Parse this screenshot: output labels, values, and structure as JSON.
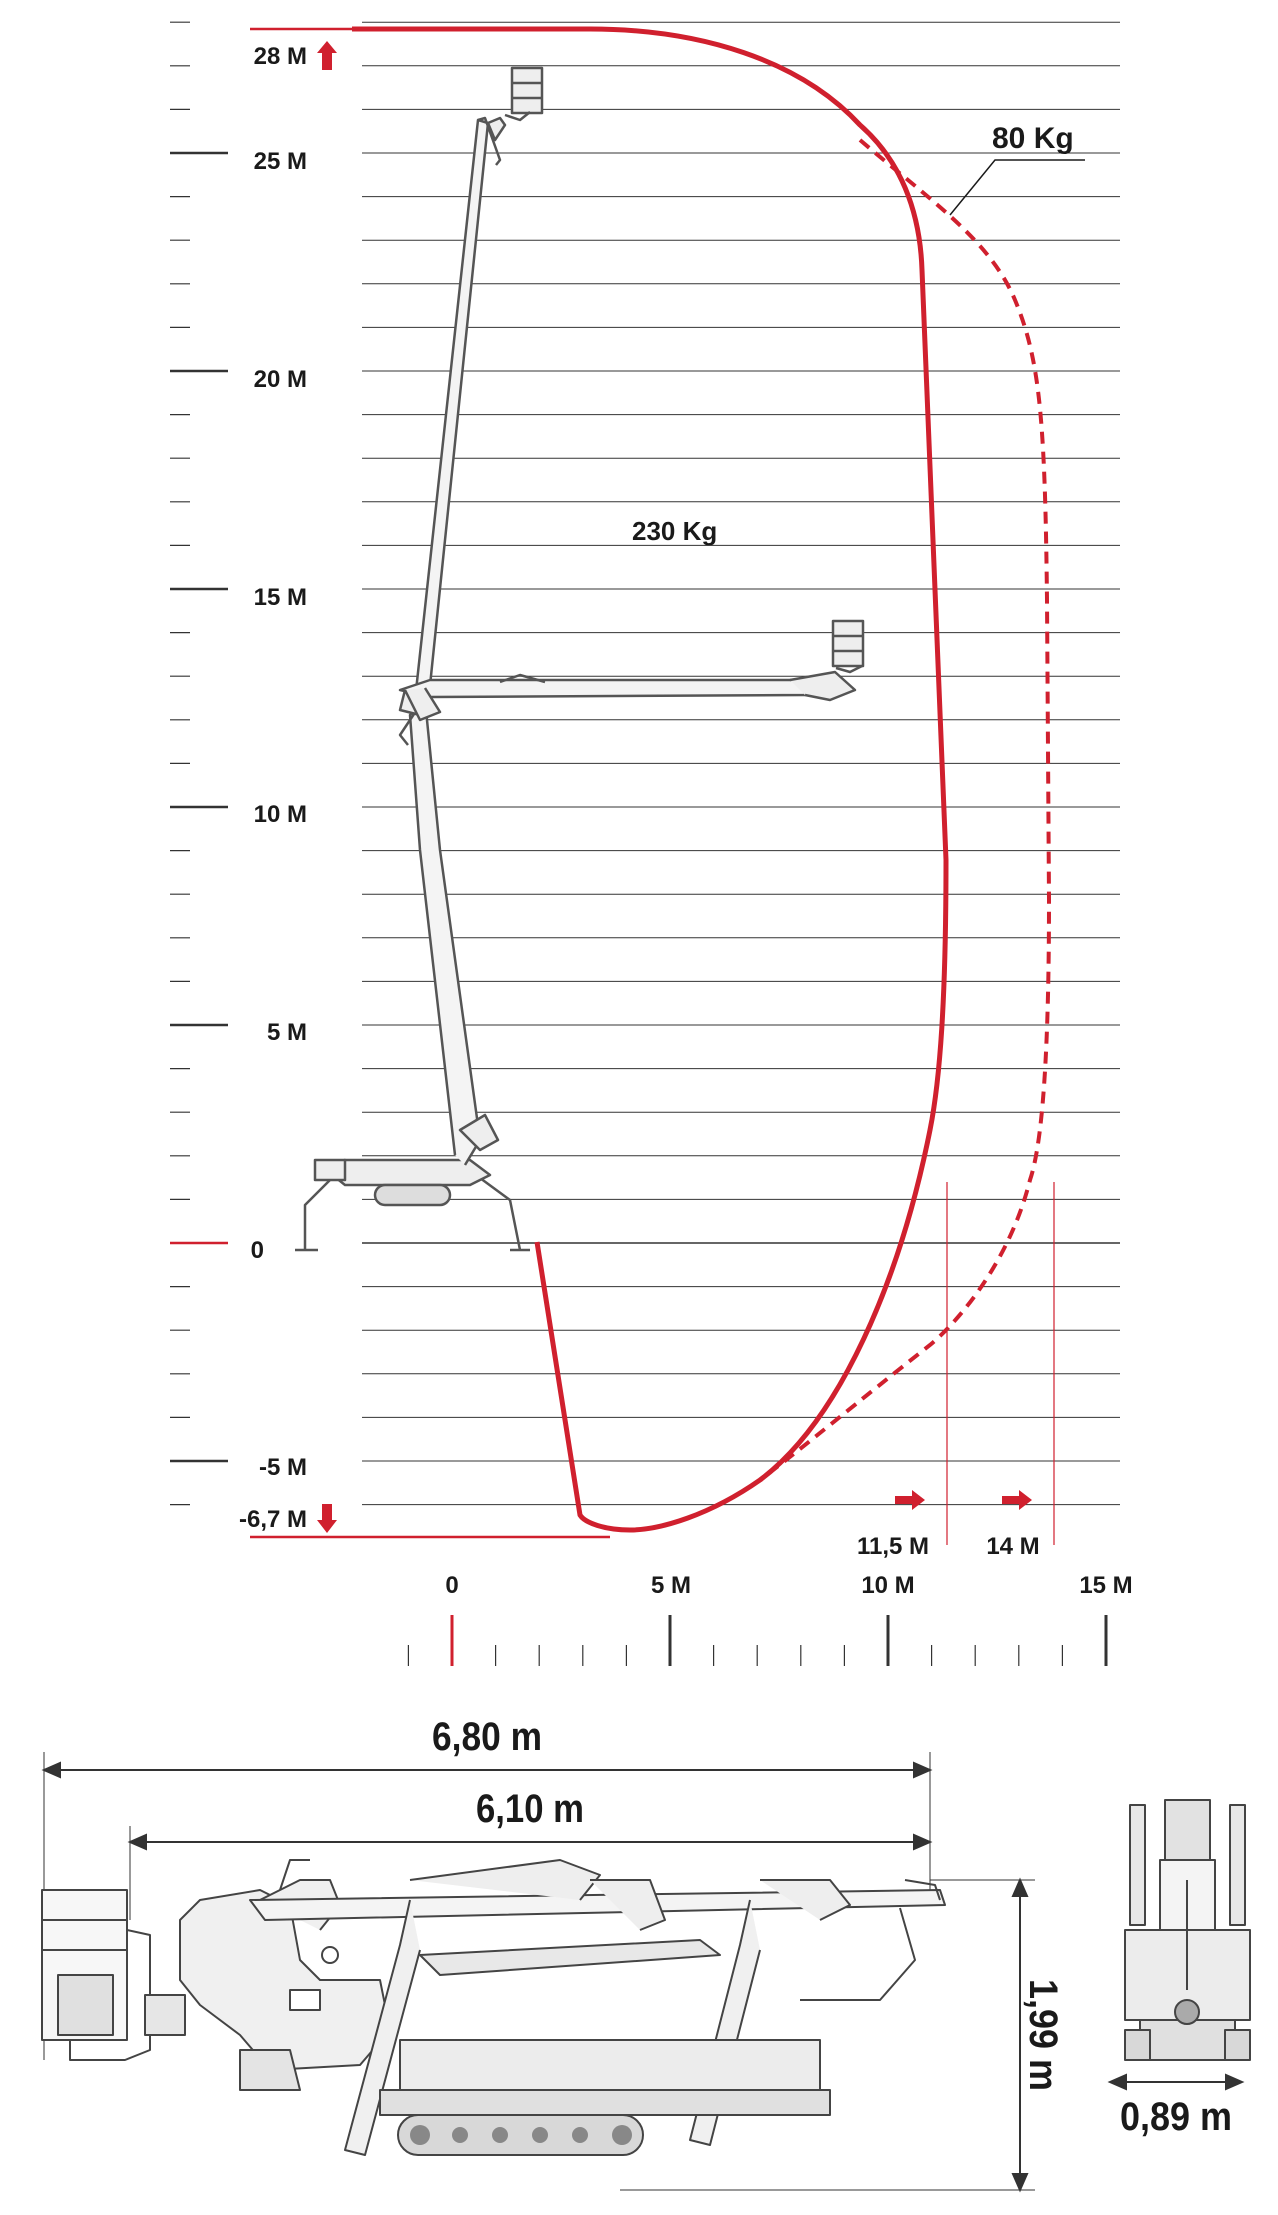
{
  "envelope": {
    "y_labels": [
      {
        "value": 28,
        "label": "28 M",
        "marker": "up-arrow"
      },
      {
        "value": 25,
        "label": "25 M"
      },
      {
        "value": 20,
        "label": "20 M"
      },
      {
        "value": 15,
        "label": "15 M"
      },
      {
        "value": 10,
        "label": "10 M"
      },
      {
        "value": 5,
        "label": "5 M"
      },
      {
        "value": 0,
        "label": "0",
        "highlight": true
      },
      {
        "value": -5,
        "label": "-5 M"
      },
      {
        "value": -6.7,
        "label": "-6,7 M",
        "marker": "down-arrow"
      }
    ],
    "x_labels": [
      {
        "value": 0,
        "label": "0",
        "highlight": true
      },
      {
        "value": 5,
        "label": "5 M"
      },
      {
        "value": 10,
        "label": "10 M"
      },
      {
        "value": 15,
        "label": "15 M"
      }
    ],
    "outreach_labels": [
      {
        "value": 11.5,
        "label": "11,5 M"
      },
      {
        "value": 14,
        "label": "14 M"
      }
    ],
    "loads": {
      "solid": "230 Kg",
      "dashed": "80 Kg"
    },
    "colors": {
      "envelope": "#d0202e",
      "grid": "#333333",
      "machine": "#555555",
      "text": "#1a1a1a"
    }
  },
  "dimensions": {
    "total_length": "6,80 m",
    "body_length": "6,10 m",
    "height": "1,99 m",
    "width": "0,89 m"
  }
}
